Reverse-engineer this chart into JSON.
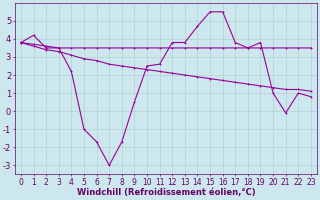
{
  "xlabel": "Windchill (Refroidissement éolien,°C)",
  "bg_color": "#cce8ee",
  "line_color": "#990099",
  "grid_color": "#aacccc",
  "tick_color": "#660066",
  "label_color": "#660066",
  "xlim": [
    -0.5,
    23.5
  ],
  "ylim": [
    -3.5,
    6.0
  ],
  "yticks": [
    -3,
    -2,
    -1,
    0,
    1,
    2,
    3,
    4,
    5
  ],
  "xticks": [
    0,
    1,
    2,
    3,
    4,
    5,
    6,
    7,
    8,
    9,
    10,
    11,
    12,
    13,
    14,
    15,
    16,
    17,
    18,
    19,
    20,
    21,
    22,
    23
  ],
  "series1_x": [
    0,
    1,
    2,
    3,
    4,
    5,
    6,
    7,
    8,
    9,
    10,
    11,
    12,
    13,
    14,
    15,
    16,
    17,
    18,
    19,
    20,
    21,
    22,
    23
  ],
  "series1_y": [
    3.8,
    4.2,
    3.5,
    3.5,
    2.2,
    -1.0,
    -1.7,
    -3.0,
    -1.7,
    0.5,
    2.5,
    2.6,
    3.8,
    3.8,
    4.7,
    5.5,
    5.5,
    3.8,
    3.5,
    3.8,
    1.0,
    -0.1,
    1.0,
    0.8
  ],
  "series2_x": [
    0,
    1,
    2,
    3,
    4,
    5,
    6,
    7,
    8,
    9,
    10,
    11,
    12,
    13,
    14,
    15,
    16,
    17,
    18,
    19,
    20,
    21,
    22,
    23
  ],
  "series2_y": [
    3.8,
    3.7,
    3.6,
    3.5,
    3.5,
    3.5,
    3.5,
    3.5,
    3.5,
    3.5,
    3.5,
    3.5,
    3.5,
    3.5,
    3.5,
    3.5,
    3.5,
    3.5,
    3.5,
    3.5,
    3.5,
    3.5,
    3.5,
    3.5
  ],
  "series3_x": [
    0,
    1,
    2,
    3,
    4,
    5,
    6,
    7,
    8,
    9,
    10,
    11,
    12,
    13,
    14,
    15,
    16,
    17,
    18,
    19,
    20,
    21,
    22,
    23
  ],
  "series3_y": [
    3.8,
    3.6,
    3.4,
    3.3,
    3.1,
    2.9,
    2.8,
    2.6,
    2.5,
    2.4,
    2.3,
    2.2,
    2.1,
    2.0,
    1.9,
    1.8,
    1.7,
    1.6,
    1.5,
    1.4,
    1.3,
    1.2,
    1.2,
    1.1
  ],
  "font_size": 5.5,
  "marker_size": 2.0,
  "line_width": 0.8
}
